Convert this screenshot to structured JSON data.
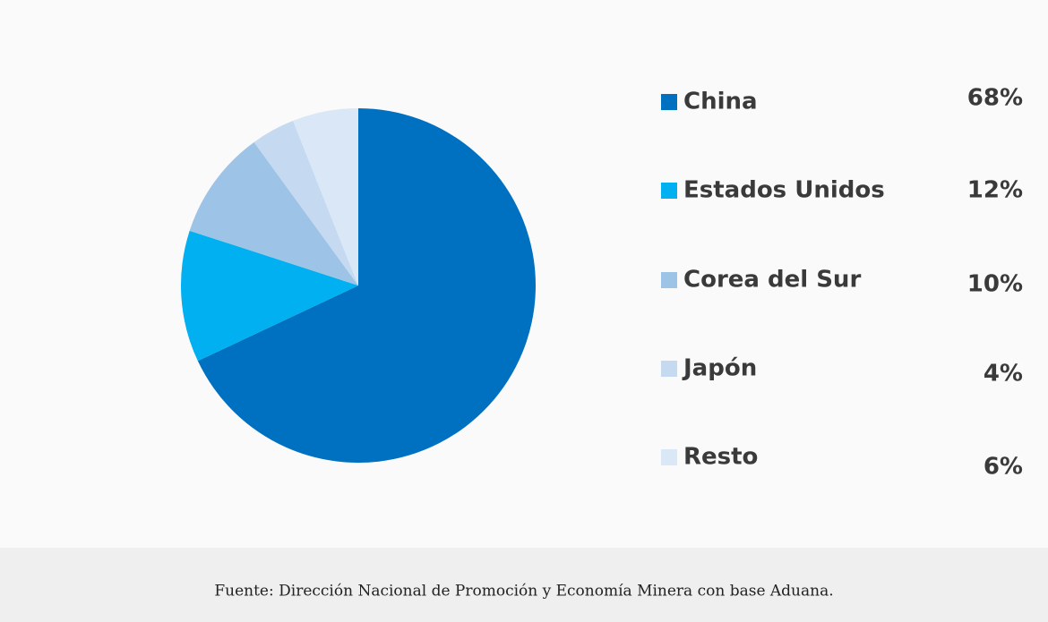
{
  "chart_data": {
    "type": "pie",
    "categories": [
      "China",
      "Estados Unidos",
      "Corea del Sur",
      "Japón",
      "Resto"
    ],
    "values": [
      68,
      12,
      10,
      4,
      6
    ],
    "value_labels": [
      "68%",
      "12%",
      "10%",
      "4%",
      "6%"
    ],
    "colors": [
      "#0070c0",
      "#00b0f0",
      "#9dc3e6",
      "#c5daf0",
      "#d9e7f7"
    ],
    "source": "Fuente: Dirección Nacional de Promoción y Economía Minera con base Aduana."
  }
}
